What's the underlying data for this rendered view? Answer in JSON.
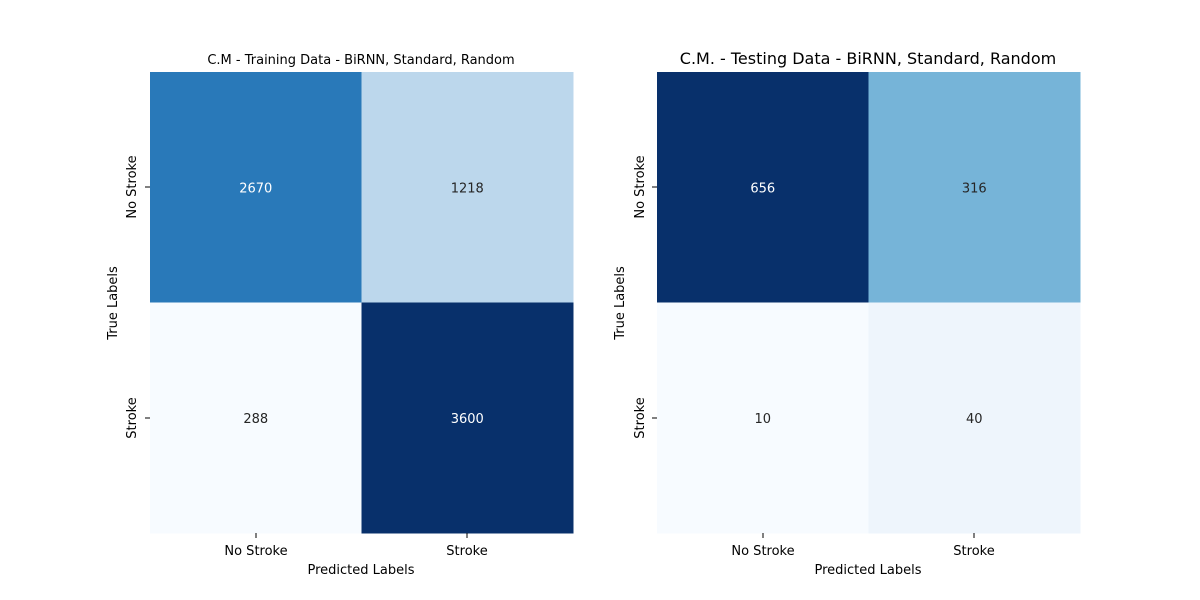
{
  "chart_data": [
    {
      "type": "heatmap",
      "title": "C.M - Training Data - BiRNN, Standard, Random",
      "xlabel": "Predicted Labels",
      "ylabel": "True Labels",
      "x_categories": [
        "No Stroke",
        "Stroke"
      ],
      "y_categories": [
        "No Stroke",
        "Stroke"
      ],
      "values": [
        [
          2670,
          1218
        ],
        [
          288,
          3600
        ]
      ],
      "colormap": "Blues",
      "colorbar": false
    },
    {
      "type": "heatmap",
      "title": "C.M. - Testing Data - BiRNN, Standard, Random",
      "xlabel": "Predicted Labels",
      "ylabel": "True Labels",
      "x_categories": [
        "No Stroke",
        "Stroke"
      ],
      "y_categories": [
        "No Stroke",
        "Stroke"
      ],
      "values": [
        [
          656,
          316
        ],
        [
          10,
          40
        ]
      ],
      "colormap": "Blues",
      "colorbar": false
    }
  ]
}
